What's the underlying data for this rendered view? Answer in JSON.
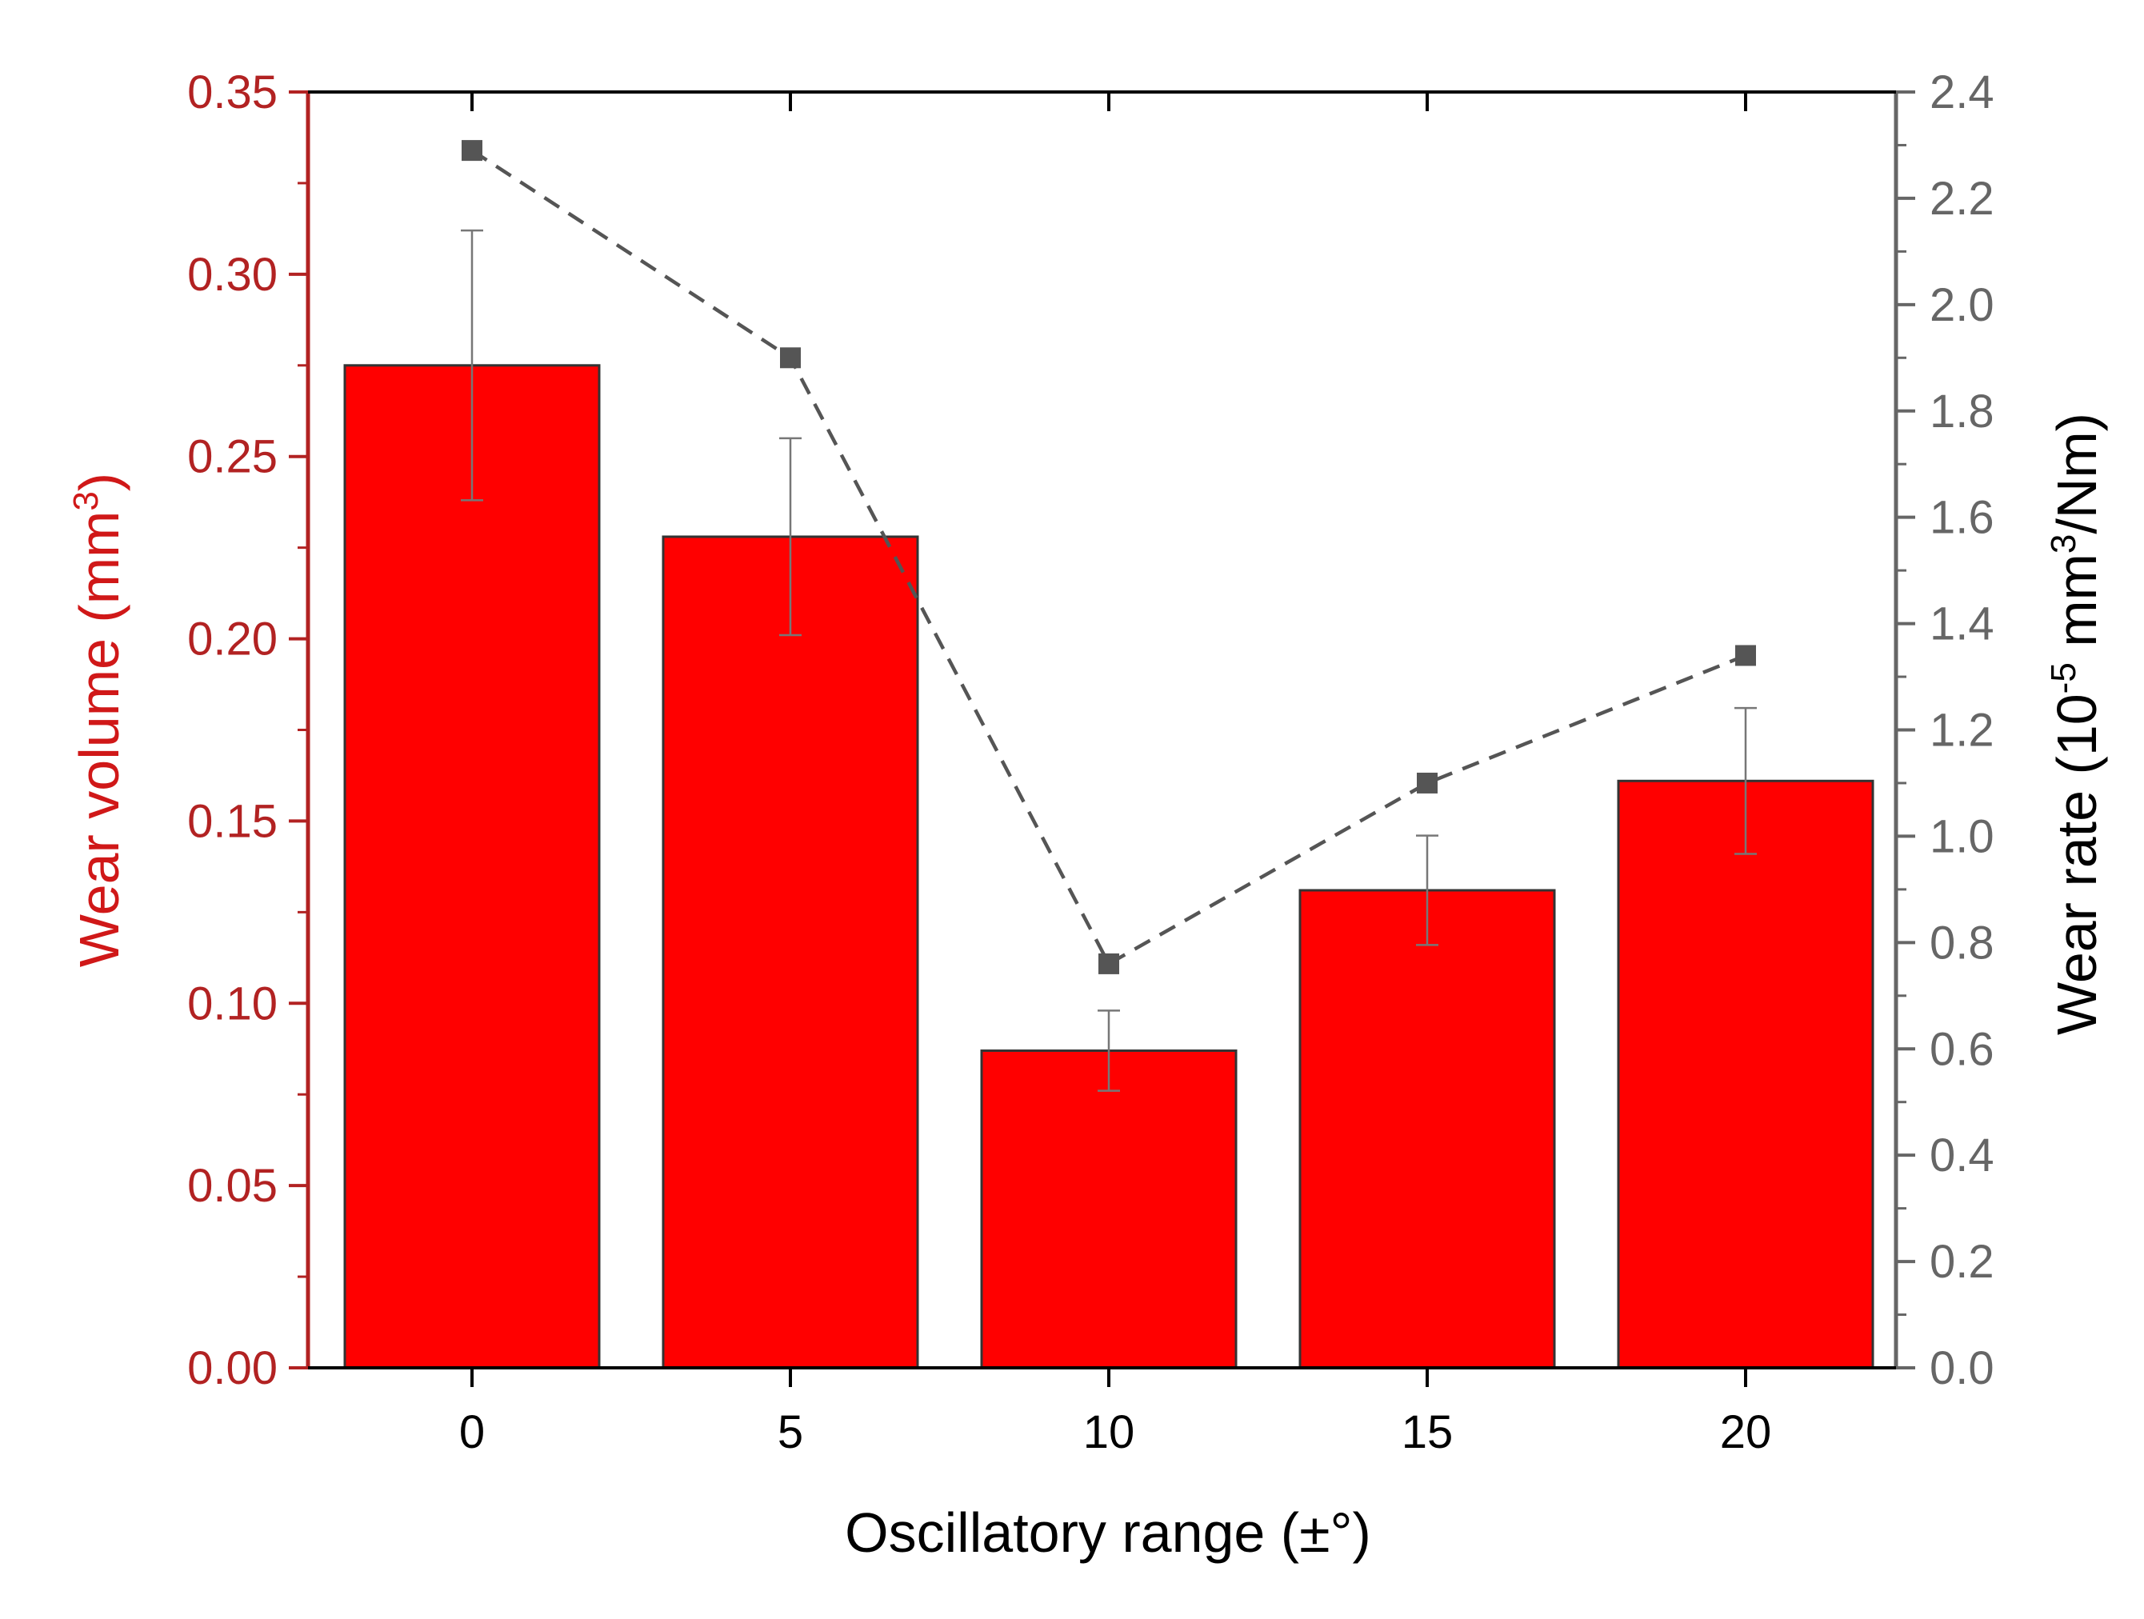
{
  "chart_data": {
    "type": "bar",
    "xlabel": "Oscillatory range (±°)",
    "categories": [
      "0",
      "5",
      "10",
      "15",
      "20"
    ],
    "series": [
      {
        "name": "Wear volume",
        "type": "bar",
        "axis": "left",
        "color": "#ff0000",
        "values": [
          0.275,
          0.228,
          0.087,
          0.131,
          0.161
        ],
        "error": [
          0.037,
          0.027,
          0.011,
          0.015,
          0.02
        ]
      },
      {
        "name": "Wear rate",
        "type": "line",
        "axis": "right",
        "color": "#555555",
        "line_style": "dashed",
        "marker": "square",
        "values": [
          2.29,
          1.9,
          0.76,
          1.1,
          1.34
        ]
      }
    ],
    "y_left": {
      "label_main": "Wear volume (mm",
      "label_sup": "3",
      "label_end": ")",
      "ylim": [
        0,
        0.35
      ],
      "ticks": [
        "0.00",
        "0.05",
        "0.10",
        "0.15",
        "0.20",
        "0.25",
        "0.30",
        "0.35"
      ],
      "color": "#b22222"
    },
    "y_right": {
      "label_main": "Wear rate (10",
      "label_sup": "-5",
      "label_mid": " mm",
      "label_sup2": "3",
      "label_end": "/Nm)",
      "ylim": [
        0,
        2.4
      ],
      "ticks": [
        "0.0",
        "0.2",
        "0.4",
        "0.6",
        "0.8",
        "1.0",
        "1.2",
        "1.4",
        "1.6",
        "1.8",
        "2.0",
        "2.2",
        "2.4"
      ],
      "color": "#666666"
    },
    "grid": false
  }
}
